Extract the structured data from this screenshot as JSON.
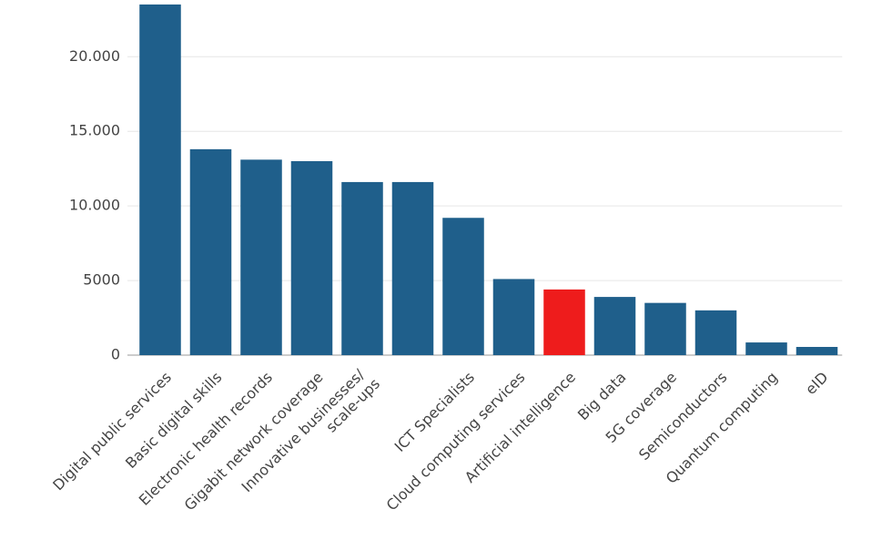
{
  "chart_data": {
    "type": "bar",
    "categories": [
      "Digital public services",
      "Basic digital skills",
      "Electronic health records",
      "Gigabit network coverage",
      "Innovative businesses/ scale-ups",
      null,
      "ICT Specialists",
      "Cloud computing services",
      "Artificial intelligence",
      "Big data",
      "5G coverage",
      "Semiconductors",
      "Quantum computing",
      "eID"
    ],
    "values": [
      23500,
      13800,
      13100,
      13000,
      11600,
      11600,
      9200,
      5100,
      4400,
      3900,
      3500,
      3000,
      850,
      550
    ],
    "colors": [
      "#1f5f8b",
      "#1f5f8b",
      "#1f5f8b",
      "#1f5f8b",
      "#1f5f8b",
      "#1f5f8b",
      "#1f5f8b",
      "#1f5f8b",
      "#ee1c1c",
      "#1f5f8b",
      "#1f5f8b",
      "#1f5f8b",
      "#1f5f8b",
      "#1f5f8b"
    ],
    "ylim": [
      0,
      23800
    ],
    "yticks": [
      0,
      5000,
      {
        "value": 10000,
        "label": "10.000"
      },
      {
        "value": 15000,
        "label": "15.000"
      },
      {
        "value": 20000,
        "label": "20.000"
      }
    ],
    "grid": true
  }
}
